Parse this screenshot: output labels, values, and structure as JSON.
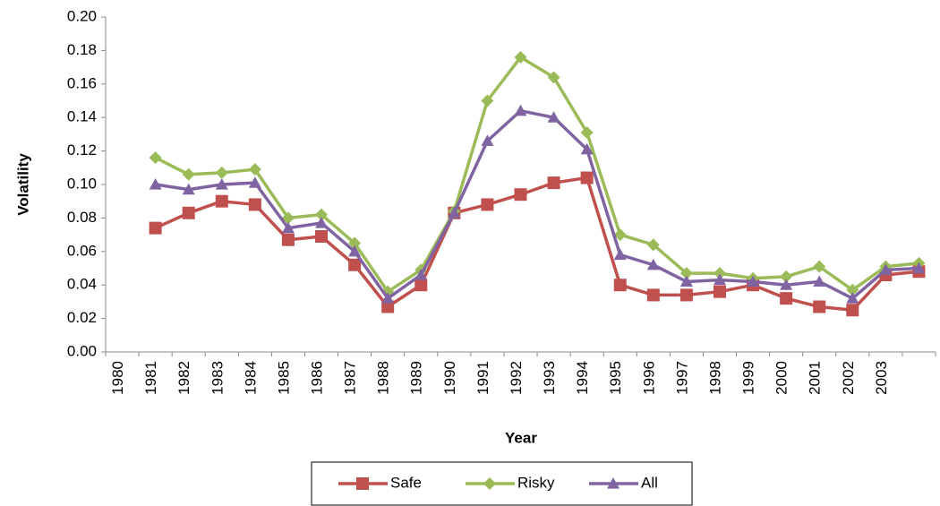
{
  "chart_data": {
    "type": "line",
    "x_label": "Year",
    "y_label": "Volatility",
    "categories": [
      "1980",
      "1981",
      "1982",
      "1983",
      "1984",
      "1985",
      "1986",
      "1987",
      "1988",
      "1989",
      "1990",
      "1991",
      "1992",
      "1993",
      "1994",
      "1995",
      "1996",
      "1997",
      "1998",
      "1999",
      "2000",
      "2001",
      "2002",
      "2003",
      null
    ],
    "series": [
      {
        "name": "Safe",
        "color": "#c0504d",
        "marker": "square",
        "values": [
          null,
          0.074,
          0.083,
          0.09,
          0.088,
          0.067,
          0.069,
          0.052,
          0.027,
          0.04,
          0.083,
          0.088,
          0.094,
          0.101,
          0.104,
          0.04,
          0.034,
          0.034,
          0.036,
          0.04,
          0.032,
          0.027,
          0.025,
          0.046,
          0.048
        ]
      },
      {
        "name": "Risky",
        "color": "#9bbb59",
        "marker": "diamond",
        "values": [
          null,
          0.116,
          0.106,
          0.107,
          0.109,
          0.08,
          0.082,
          0.065,
          0.036,
          0.049,
          0.084,
          0.15,
          0.176,
          0.164,
          0.131,
          0.07,
          0.064,
          0.047,
          0.047,
          0.044,
          0.045,
          0.051,
          0.037,
          0.051,
          0.053
        ]
      },
      {
        "name": "All",
        "color": "#8064a2",
        "marker": "triangle",
        "values": [
          null,
          0.1,
          0.097,
          0.1,
          0.101,
          0.074,
          0.077,
          0.06,
          0.032,
          0.046,
          0.083,
          0.126,
          0.144,
          0.14,
          0.121,
          0.058,
          0.052,
          0.042,
          0.043,
          0.042,
          0.04,
          0.042,
          0.032,
          0.049,
          0.05
        ]
      }
    ],
    "ylim": [
      0,
      0.2
    ],
    "yticks": [
      {
        "value": 0,
        "label": "0.00"
      },
      {
        "value": 0.02,
        "label": "0.02"
      },
      {
        "value": 0.04,
        "label": "0.04"
      },
      {
        "value": 0.06,
        "label": "0.06"
      },
      {
        "value": 0.08,
        "label": "0.08"
      },
      {
        "value": 0.1,
        "label": "0.10"
      },
      {
        "value": 0.12,
        "label": "0.12"
      },
      {
        "value": 0.14,
        "label": "0.14"
      },
      {
        "value": 0.16,
        "label": "0.16"
      },
      {
        "value": 0.18,
        "label": "0.18"
      },
      {
        "value": 0.2,
        "label": "0.20"
      }
    ],
    "grid": false,
    "legend": "bottom"
  }
}
